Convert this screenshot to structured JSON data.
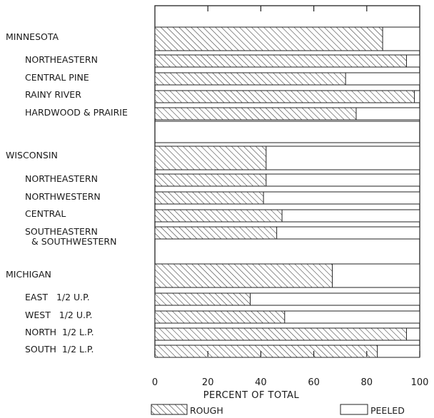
{
  "chart_data": {
    "type": "bar",
    "orientation": "horizontal",
    "stacked": true,
    "title": "",
    "xlabel": "PERCENT OF TOTAL",
    "ylabel": "",
    "xlim": [
      0,
      100
    ],
    "xticks": [
      "0",
      "20",
      "40",
      "60",
      "80",
      "100"
    ],
    "grid": false,
    "legend": {
      "placement": "bottom",
      "items": [
        "ROUGH",
        "PEELED"
      ]
    },
    "series": [
      {
        "name": "ROUGH",
        "pattern": "diagonal-hatch"
      },
      {
        "name": "PEELED",
        "pattern": "none"
      }
    ],
    "groups": [
      {
        "label": "MINNESOTA",
        "rough": 86,
        "items": [
          {
            "label": "NORTHEASTERN",
            "rough": 95
          },
          {
            "label": "CENTRAL PINE",
            "rough": 72
          },
          {
            "label": "RAINY RIVER",
            "rough": 98
          },
          {
            "label": "HARDWOOD & PRAIRIE",
            "rough": 76
          }
        ]
      },
      {
        "label": "WISCONSIN",
        "rough": 42,
        "items": [
          {
            "label": "NORTHEASTERN",
            "rough": 42
          },
          {
            "label": "NORTHWESTERN",
            "rough": 41
          },
          {
            "label": "CENTRAL",
            "rough": 48
          },
          {
            "label": "SOUTHEASTERN",
            "label2": "& SOUTHWESTERN",
            "rough": 46
          }
        ]
      },
      {
        "label": "MICHIGAN",
        "rough": 67,
        "items": [
          {
            "label": "EAST   1/2 U.P.",
            "rough": 36
          },
          {
            "label": "WEST   1/2 U.P.",
            "rough": 49
          },
          {
            "label": "NORTH  1/2 L.P.",
            "rough": 95
          },
          {
            "label": "SOUTH  1/2 L.P.",
            "rough": 84
          }
        ]
      }
    ]
  }
}
